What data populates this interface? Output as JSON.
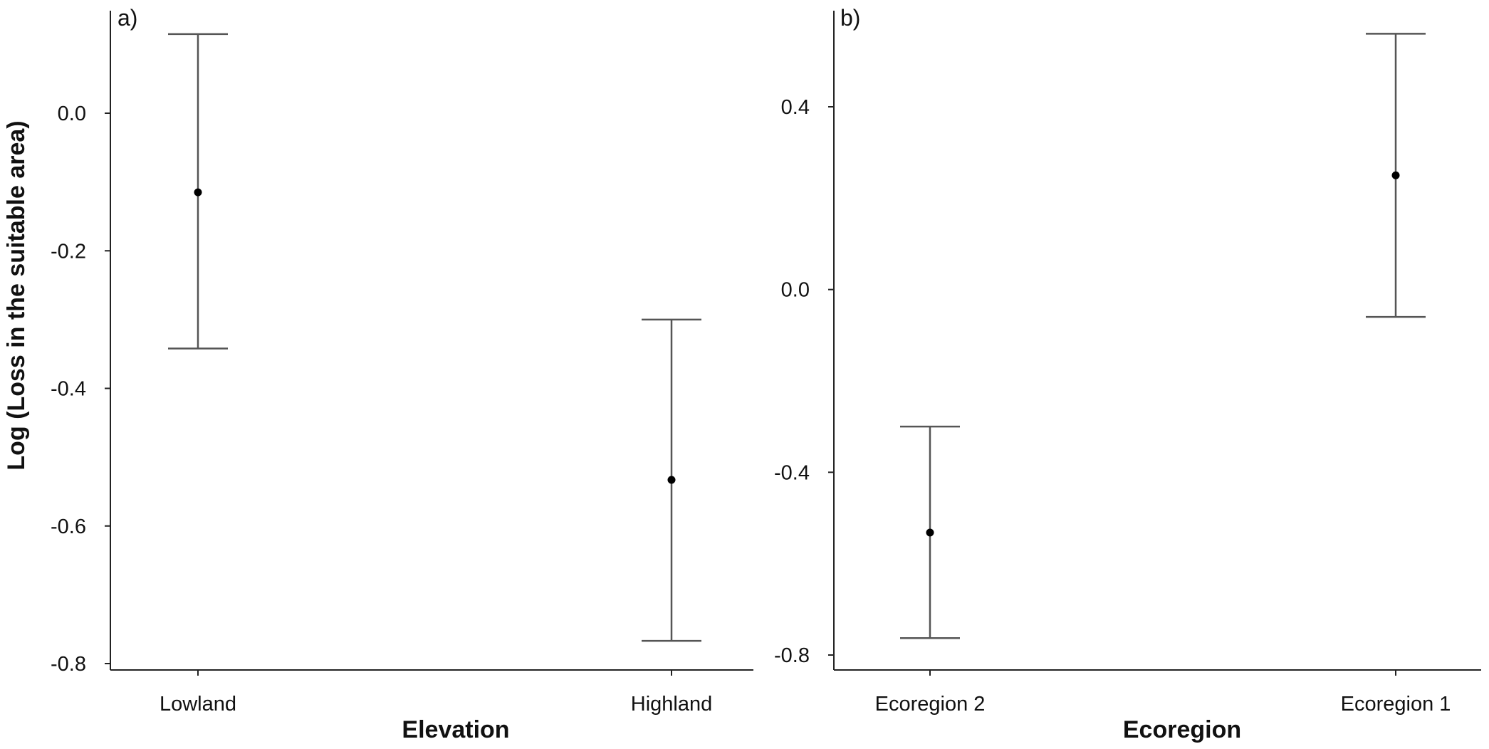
{
  "chart_data": [
    {
      "type": "errorbar",
      "panel_label": "a)",
      "xlabel": "Elevation",
      "ylabel": "Log (Loss in the suitable area)",
      "ylim": [
        -0.81,
        0.15
      ],
      "yticks": [
        0.0,
        -0.2,
        -0.4,
        -0.6,
        -0.8
      ],
      "ytick_labels": [
        "0.0",
        "-0.2",
        "-0.4",
        "-0.6",
        "-0.8"
      ],
      "categories": [
        "Lowland",
        "Highland"
      ],
      "points": [
        {
          "category": "Lowland",
          "mean": -0.115,
          "lower": -0.342,
          "upper": 0.115
        },
        {
          "category": "Highland",
          "mean": -0.533,
          "lower": -0.767,
          "upper": -0.3
        }
      ],
      "grid": false
    },
    {
      "type": "errorbar",
      "panel_label": "b)",
      "xlabel": "Ecoregion",
      "ylabel": "",
      "ylim": [
        -0.81,
        0.64
      ],
      "yticks": [
        0.4,
        0.0,
        -0.4,
        -0.8
      ],
      "ytick_labels": [
        "0.4",
        "0.0",
        "-0.4",
        "-0.8"
      ],
      "categories": [
        "Ecoregion 2",
        "Ecoregion 1"
      ],
      "points": [
        {
          "category": "Ecoregion 2",
          "mean": -0.532,
          "lower": -0.763,
          "upper": -0.3
        },
        {
          "category": "Ecoregion 1",
          "mean": 0.25,
          "lower": -0.06,
          "upper": 0.56
        }
      ],
      "grid": false
    }
  ]
}
